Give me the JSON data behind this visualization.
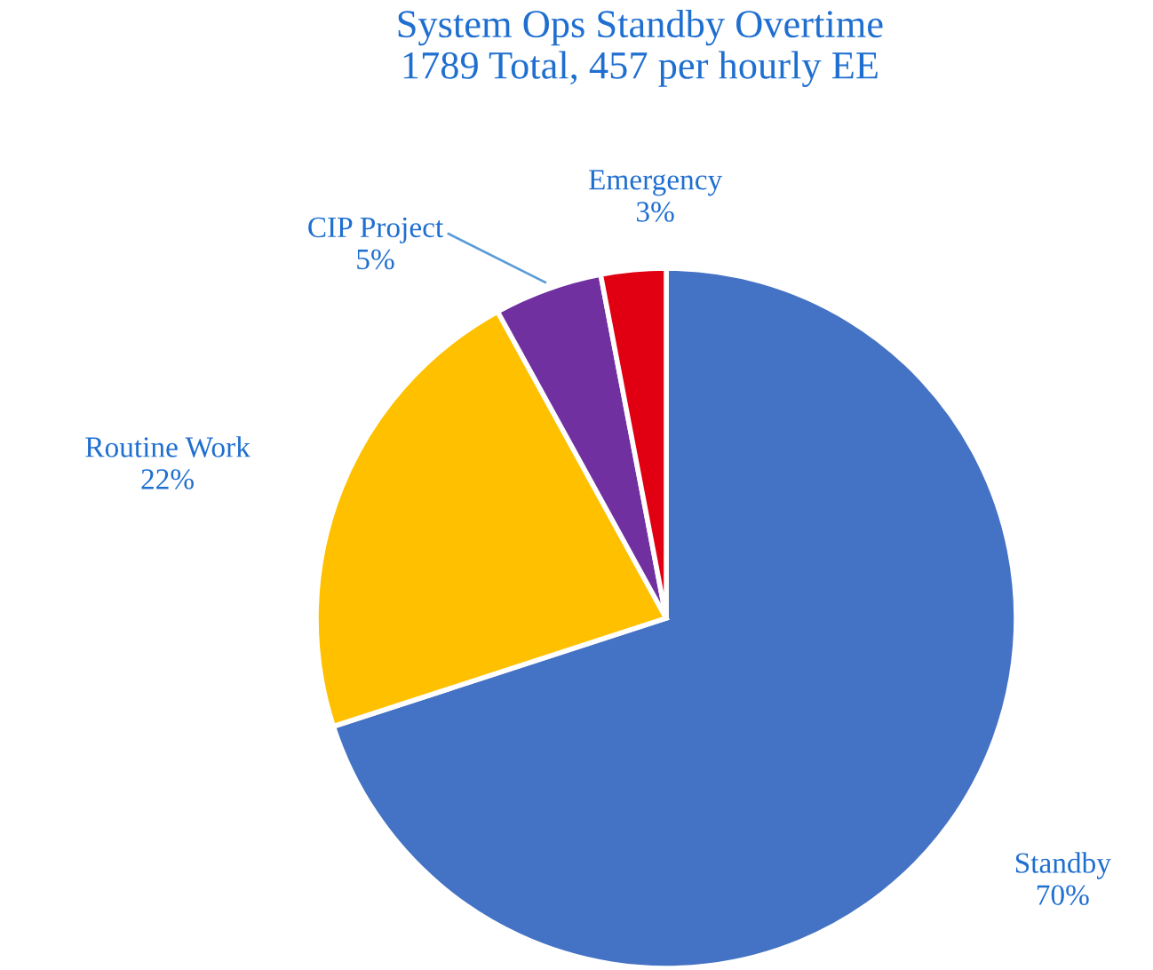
{
  "chart_data": {
    "type": "pie",
    "title": "System Ops Standby Overtime",
    "subtitle": "1789 Total, 457 per hourly EE",
    "categories": [
      "Standby",
      "Routine Work",
      "CIP Project",
      "Emergency"
    ],
    "values": [
      70,
      22,
      5,
      3
    ],
    "value_labels": [
      "70%",
      "22%",
      "5%",
      "3%"
    ],
    "colors": [
      "#4472c4",
      "#ffc000",
      "#7030a0",
      "#e00012"
    ],
    "legend": false
  }
}
